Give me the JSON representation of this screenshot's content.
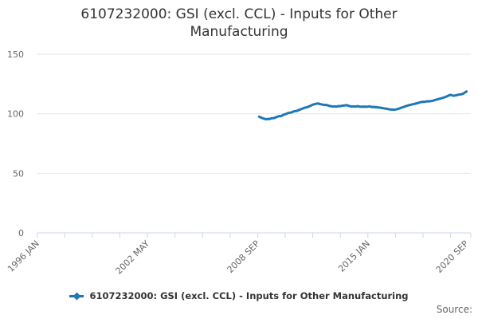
{
  "chart": {
    "title": "6107232000: GSI (excl. CCL) - Inputs for Other Manufacturing"
  },
  "legend": {
    "label": "6107232000: GSI (excl. CCL) - Inputs for Other Manufacturing"
  },
  "footer": {
    "source": "Source:"
  },
  "colors": {
    "series": "#1e78b8",
    "axis": "#ccd6eb",
    "grid": "#e6e6e6",
    "axis_label": "#666666",
    "title": "#333333"
  },
  "chart_data": {
    "type": "line",
    "title": "6107232000: GSI (excl. CCL) - Inputs for Other Manufacturing",
    "legend_position": "bottom",
    "grid": "horizontal-only",
    "x_axis": {
      "origin_label": "1996 JAN",
      "tick_months_from_origin": [
        0,
        19,
        38,
        57,
        76,
        95,
        114,
        133,
        152,
        171,
        190,
        209,
        228,
        247,
        266,
        285,
        299
      ],
      "labels": [
        {
          "month": 0,
          "text": "1996 JAN"
        },
        {
          "month": 76,
          "text": "2002 MAY"
        },
        {
          "month": 152,
          "text": "2008 SEP"
        },
        {
          "month": 228,
          "text": "2015 JAN"
        },
        {
          "month": 296,
          "text": "2020 SEP"
        }
      ],
      "max_month": 299,
      "label_rotation_deg": -45
    },
    "y_axis": {
      "min": 0,
      "max": 150,
      "ticks": [
        0,
        50,
        100,
        150
      ]
    },
    "series": [
      {
        "name": "6107232000: GSI (excl. CCL) - Inputs for Other Manufacturing",
        "start": "2008-10",
        "frequency": "monthly",
        "start_month_from_origin": 153,
        "values": [
          97.6,
          97.0,
          96.4,
          96.0,
          95.6,
          95.4,
          95.7,
          95.5,
          96.0,
          96.3,
          96.2,
          96.8,
          97.2,
          97.7,
          98.1,
          98.0,
          98.6,
          99.3,
          99.6,
          100.1,
          100.6,
          100.9,
          101.0,
          101.6,
          102.0,
          102.3,
          102.4,
          103.0,
          103.4,
          103.9,
          104.4,
          104.9,
          105.3,
          105.5,
          106.0,
          106.5,
          107.1,
          107.6,
          108.0,
          108.3,
          108.6,
          108.5,
          108.2,
          107.9,
          107.6,
          107.4,
          107.5,
          107.2,
          106.8,
          106.5,
          106.3,
          106.1,
          106.3,
          106.0,
          106.2,
          106.5,
          106.4,
          106.7,
          106.9,
          107.0,
          107.2,
          107.0,
          106.6,
          106.3,
          106.1,
          106.3,
          106.0,
          106.2,
          106.4,
          106.1,
          105.9,
          106.0,
          105.9,
          106.1,
          105.8,
          106.0,
          106.2,
          105.9,
          105.7,
          105.8,
          105.5,
          105.6,
          105.3,
          105.2,
          105.1,
          104.8,
          104.6,
          104.4,
          104.2,
          103.9,
          103.7,
          103.5,
          103.6,
          103.4,
          103.6,
          103.8,
          104.2,
          104.6,
          105.1,
          105.5,
          105.9,
          106.4,
          106.7,
          107.1,
          107.4,
          107.7,
          108.0,
          108.2,
          108.6,
          108.9,
          109.3,
          109.6,
          109.9,
          110.1,
          110.0,
          110.3,
          110.5,
          110.4,
          110.6,
          110.7,
          111.0,
          111.4,
          111.8,
          112.1,
          112.5,
          112.8,
          113.1,
          113.5,
          113.9,
          114.4,
          114.9,
          115.5,
          115.9,
          115.5,
          115.1,
          115.3,
          115.6,
          115.9,
          116.1,
          116.3,
          116.6,
          117.1,
          117.9,
          118.7
        ]
      }
    ]
  }
}
